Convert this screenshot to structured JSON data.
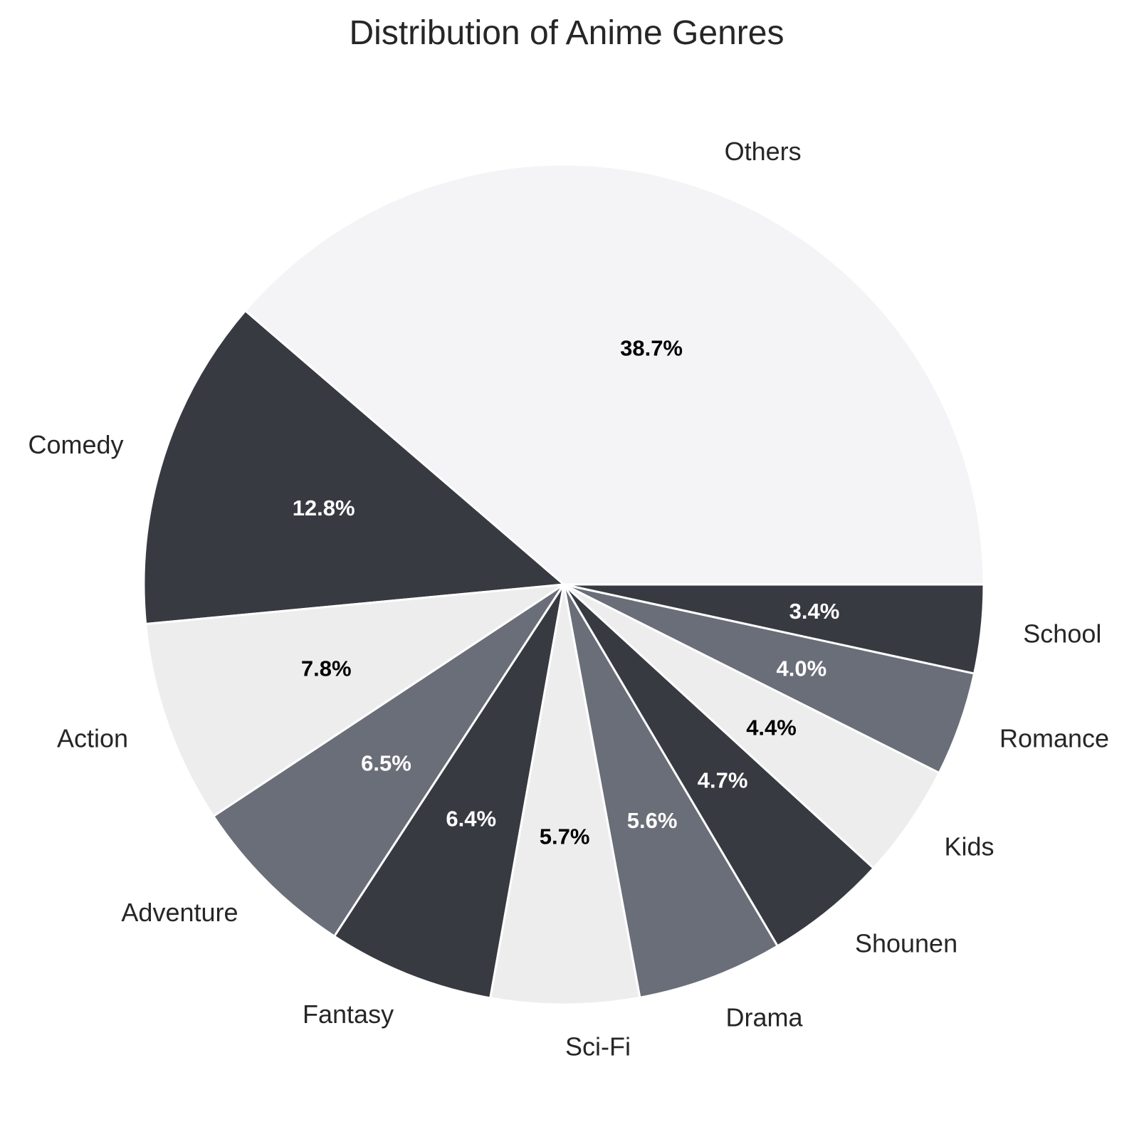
{
  "chart_data": {
    "type": "pie",
    "title": "Distribution of Anime Genres",
    "start_angle_deg": 0,
    "direction": "counterclockwise",
    "slices": [
      {
        "label": "Others",
        "value": 38.7,
        "pct_text": "38.7%",
        "color": "#f4f4f6",
        "pct_color": "#000000"
      },
      {
        "label": "Comedy",
        "value": 12.8,
        "pct_text": "12.8%",
        "color": "#383a42",
        "pct_color": "#ffffff"
      },
      {
        "label": "Action",
        "value": 7.8,
        "pct_text": "7.8%",
        "color": "#ededed",
        "pct_color": "#000000"
      },
      {
        "label": "Adventure",
        "value": 6.5,
        "pct_text": "6.5%",
        "color": "#6a6e78",
        "pct_color": "#ffffff"
      },
      {
        "label": "Fantasy",
        "value": 6.4,
        "pct_text": "6.4%",
        "color": "#383a42",
        "pct_color": "#ffffff"
      },
      {
        "label": "Sci-Fi",
        "value": 5.7,
        "pct_text": "5.7%",
        "color": "#ededed",
        "pct_color": "#000000"
      },
      {
        "label": "Drama",
        "value": 5.6,
        "pct_text": "5.6%",
        "color": "#6a6e78",
        "pct_color": "#ffffff"
      },
      {
        "label": "Shounen",
        "value": 4.7,
        "pct_text": "4.7%",
        "color": "#383a42",
        "pct_color": "#ffffff"
      },
      {
        "label": "Kids",
        "value": 4.4,
        "pct_text": "4.4%",
        "color": "#ededed",
        "pct_color": "#000000"
      },
      {
        "label": "Romance",
        "value": 4.0,
        "pct_text": "4.0%",
        "color": "#6a6e78",
        "pct_color": "#ffffff"
      },
      {
        "label": "School",
        "value": 3.4,
        "pct_text": "3.4%",
        "color": "#383a42",
        "pct_color": "#ffffff"
      }
    ]
  }
}
